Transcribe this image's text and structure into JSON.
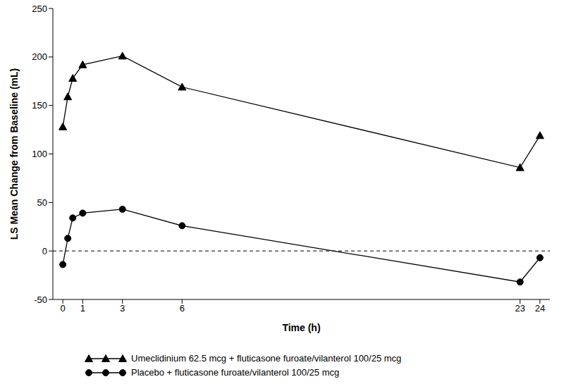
{
  "chart_data": {
    "type": "line",
    "x_label": "Time (h)",
    "y_label": "LS Mean Change from Baseline (mL)",
    "x": [
      0,
      0.25,
      0.5,
      1,
      3,
      6,
      23,
      24
    ],
    "series": [
      {
        "name": "Umeclidinium 62.5 mcg + fluticasone furoate/vilanterol 100/25 mcg",
        "color": "#000000",
        "marker": "triangle",
        "line_style": "solid",
        "values": [
          128,
          159,
          178,
          192,
          201,
          169,
          86,
          119
        ]
      },
      {
        "name": "Placebo + fluticasone furoate/vilanterol 100/25 mcg",
        "color": "#000000",
        "marker": "circle",
        "line_style": "solid",
        "values": [
          -14,
          13,
          34,
          39,
          43,
          26,
          -32,
          -7
        ]
      }
    ],
    "xlim": [
      -0.5,
      24.5
    ],
    "xticks": [
      0,
      1,
      3,
      6,
      23,
      24
    ],
    "ylim": [
      -50,
      250
    ],
    "yticks": [
      -50,
      0,
      50,
      100,
      150,
      200,
      250
    ],
    "reference_line": 0,
    "grid": false,
    "legend": "bottom"
  }
}
